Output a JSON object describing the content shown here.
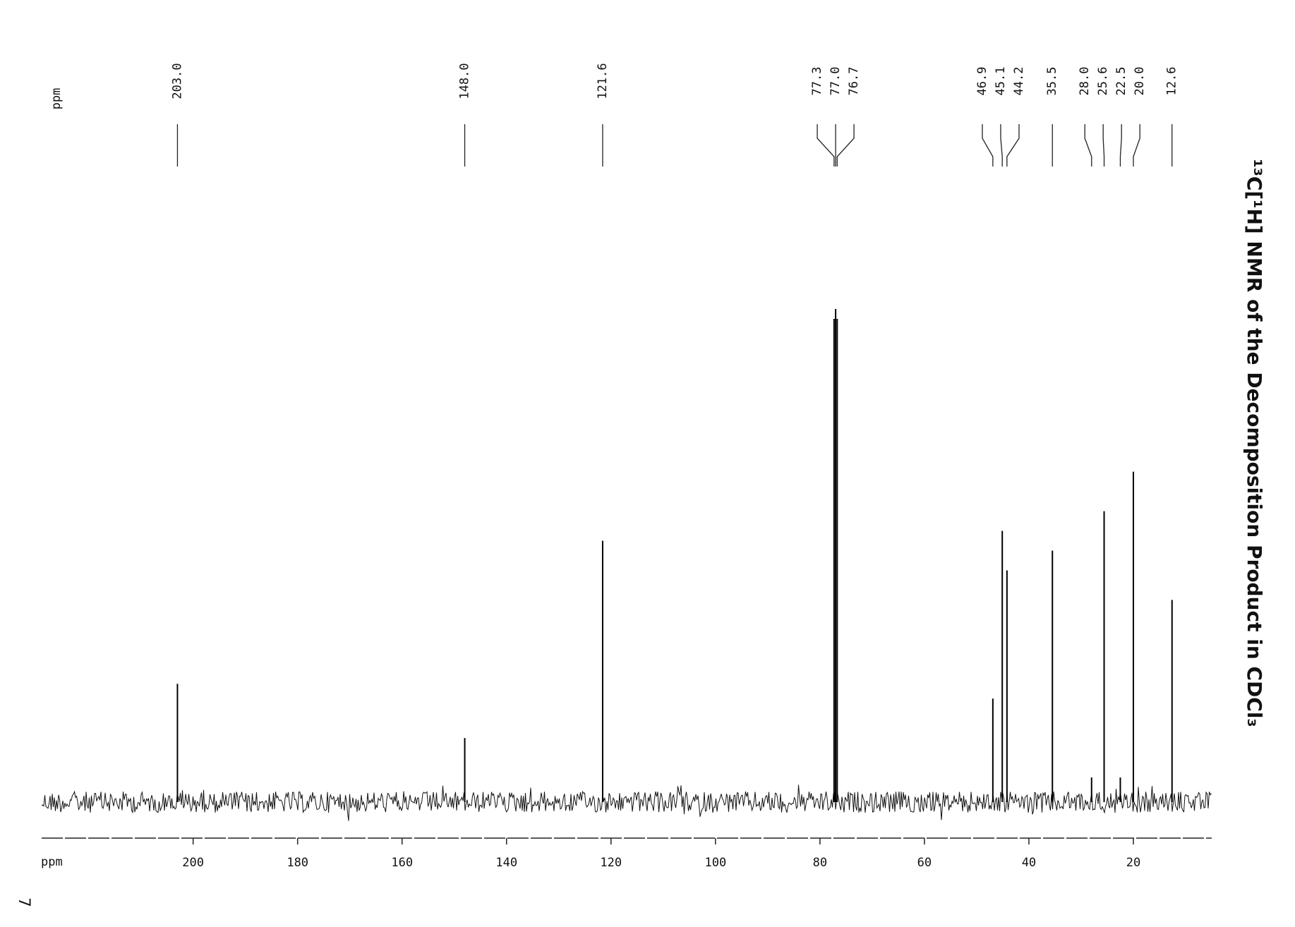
{
  "chart_data": {
    "type": "nmr",
    "title": "¹³C[¹H] NMR of the Decomposition Product in CDCl₃",
    "xlabel": "ppm",
    "peak_label_header": "ppm",
    "xlim": [
      229,
      5
    ],
    "xticks": [
      200,
      180,
      160,
      140,
      120,
      100,
      80,
      60,
      40,
      20
    ],
    "ylim": [
      0,
      100
    ],
    "color": "#000000",
    "peaks": [
      {
        "value": 203.0,
        "label": "203.0",
        "intensity": 24
      },
      {
        "value": 148.0,
        "label": "148.0",
        "intensity": 13
      },
      {
        "value": 121.6,
        "label": "121.6",
        "intensity": 53
      },
      {
        "value": 77.3,
        "label": "77.3",
        "intensity": 98
      },
      {
        "value": 77.0,
        "label": "77.0",
        "intensity": 100
      },
      {
        "value": 76.7,
        "label": "76.7",
        "intensity": 98
      },
      {
        "value": 46.9,
        "label": "46.9",
        "intensity": 21
      },
      {
        "value": 45.1,
        "label": "45.1",
        "intensity": 55
      },
      {
        "value": 44.2,
        "label": "44.2",
        "intensity": 47
      },
      {
        "value": 35.5,
        "label": "35.5",
        "intensity": 51
      },
      {
        "value": 28.0,
        "label": "28.0",
        "intensity": 5
      },
      {
        "value": 25.6,
        "label": "25.6",
        "intensity": 59
      },
      {
        "value": 22.5,
        "label": "22.5",
        "intensity": 5
      },
      {
        "value": 20.0,
        "label": "20.0",
        "intensity": 67
      },
      {
        "value": 12.6,
        "label": "12.6",
        "intensity": 41
      }
    ]
  },
  "page": {
    "number": "7"
  }
}
